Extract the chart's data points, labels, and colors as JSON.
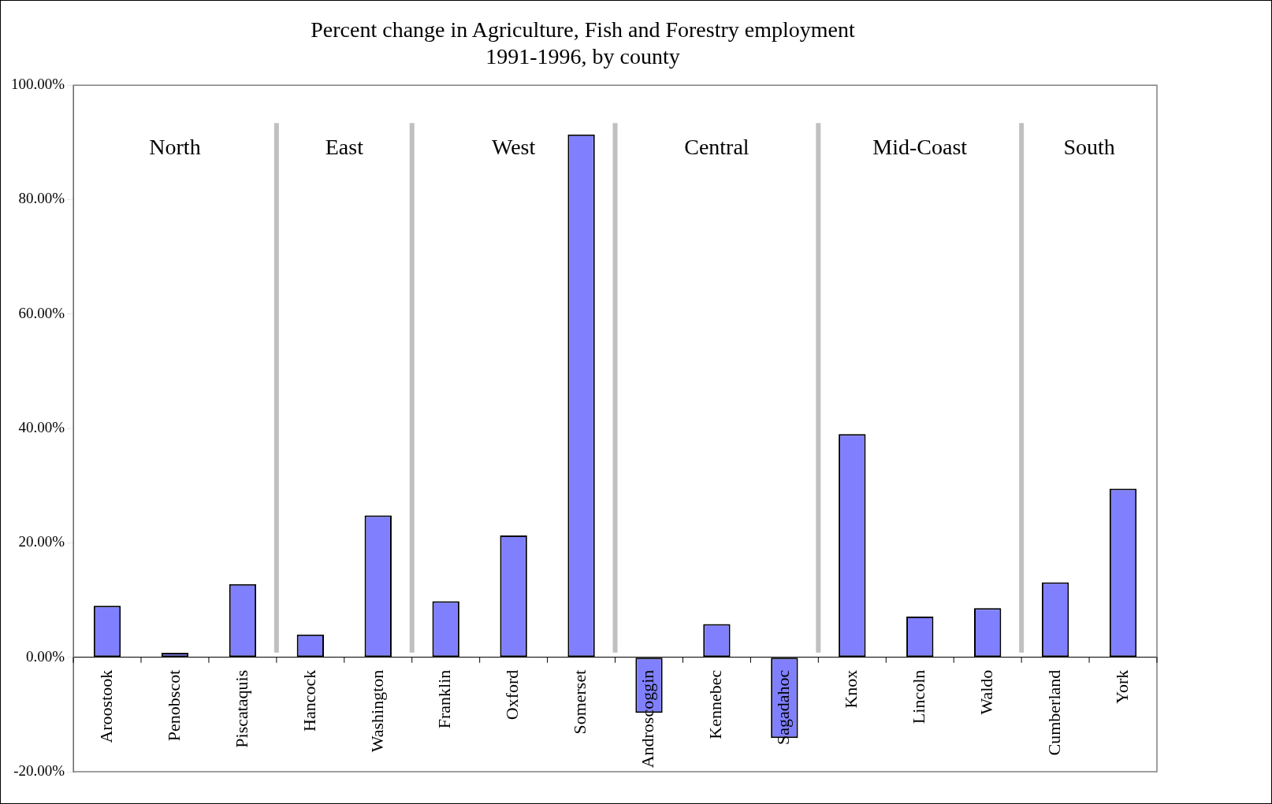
{
  "chart_data": {
    "type": "bar",
    "title": [
      "Percent change in Agriculture, Fish and Forestry employment",
      "1991-1996, by county"
    ],
    "categories": [
      "Aroostook",
      "Penobscot",
      "Piscataquis",
      "Hancock",
      "Washington",
      "Franklin",
      "Oxford",
      "Somerset",
      "Androscoggin",
      "Kennebec",
      "Sagadahoc",
      "Knox",
      "Lincoln",
      "Waldo",
      "Cumberland",
      "York"
    ],
    "values": [
      9.0,
      0.8,
      12.8,
      4.0,
      24.8,
      9.8,
      21.3,
      91.4,
      -9.7,
      5.8,
      -14.1,
      39.0,
      7.1,
      8.6,
      13.1,
      29.5
    ],
    "color": "#8080ff",
    "ylim": [
      -20,
      100
    ],
    "yticks": [
      {
        "value": -20,
        "label": "-20.00%"
      },
      {
        "value": 0,
        "label": "0.00%"
      },
      {
        "value": 20,
        "label": "20.00%"
      },
      {
        "value": 40,
        "label": "40.00%"
      },
      {
        "value": 60,
        "label": "60.00%"
      },
      {
        "value": 80,
        "label": "80.00%"
      },
      {
        "value": 100,
        "label": "100.00%"
      }
    ],
    "annotations": [
      "North",
      "East",
      "West",
      "Central",
      "Mid-Coast",
      "South"
    ],
    "grid": false,
    "legend": false
  }
}
